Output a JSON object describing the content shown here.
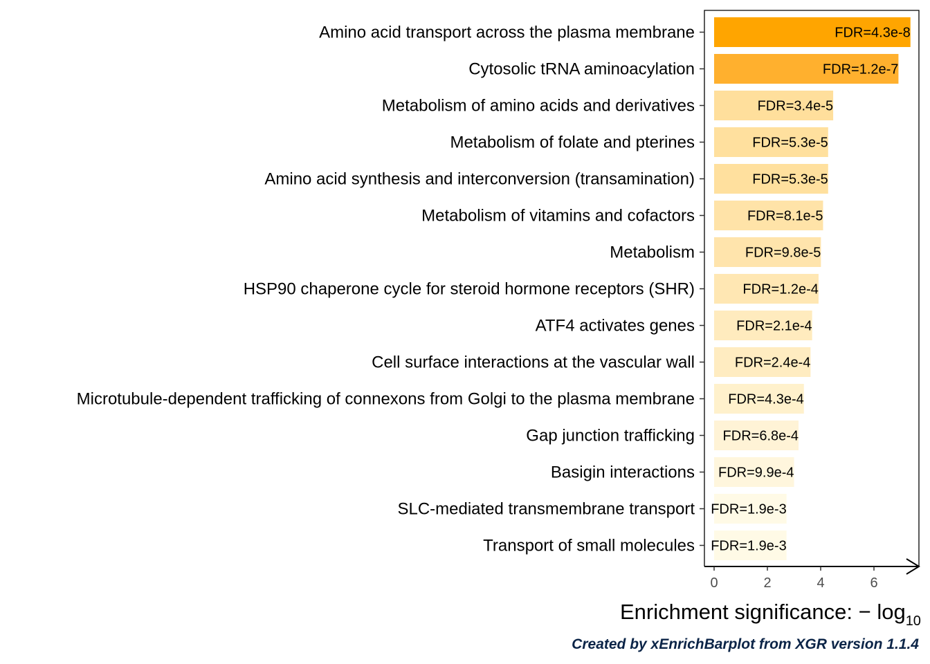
{
  "chart_data": {
    "type": "bar",
    "orientation": "horizontal",
    "categories": [
      "Amino acid transport across the plasma membrane",
      "Cytosolic tRNA aminoacylation",
      "Metabolism of amino acids and derivatives",
      "Metabolism of folate and pterines",
      "Amino acid synthesis and interconversion (transamination)",
      "Metabolism of vitamins and cofactors",
      "Metabolism",
      "HSP90 chaperone cycle for steroid hormone receptors (SHR)",
      "ATF4 activates genes",
      "Cell surface interactions at the vascular wall",
      "Microtubule-dependent trafficking of connexons from Golgi to the plasma membrane",
      "Gap junction trafficking",
      "Basigin interactions",
      "SLC-mediated transmembrane transport",
      "Transport of small molecules"
    ],
    "values": [
      7.37,
      6.92,
      4.47,
      4.28,
      4.28,
      4.09,
      4.01,
      3.92,
      3.68,
      3.62,
      3.37,
      3.17,
      3.0,
      2.72,
      2.72
    ],
    "bar_labels": [
      "FDR=4.3e-8",
      "FDR=1.2e-7",
      "FDR=3.4e-5",
      "FDR=5.3e-5",
      "FDR=5.3e-5",
      "FDR=8.1e-5",
      "FDR=9.8e-5",
      "FDR=1.2e-4",
      "FDR=2.1e-4",
      "FDR=2.4e-4",
      "FDR=4.3e-4",
      "FDR=6.8e-4",
      "FDR=9.9e-4",
      "FDR=1.9e-3",
      "FDR=1.9e-3"
    ],
    "colors": [
      "#ffa500",
      "#ffb02e",
      "#ffdf9c",
      "#ffe09e",
      "#ffe09e",
      "#ffe3a8",
      "#ffe4ac",
      "#ffe7b3",
      "#ffebbe",
      "#ffecc1",
      "#fff1cc",
      "#fff3d6",
      "#fff6dd",
      "#fffae6",
      "#fffae6"
    ],
    "xticks": [
      0,
      2,
      4,
      6
    ],
    "xlim": [
      -0.37,
      7.7
    ],
    "xlabel": "Enrichment significance: − log",
    "xlabel_subscript": "10",
    "grid": false,
    "legend": "none"
  },
  "caption": "Created by xEnrichBarplot from XGR version 1.1.4"
}
